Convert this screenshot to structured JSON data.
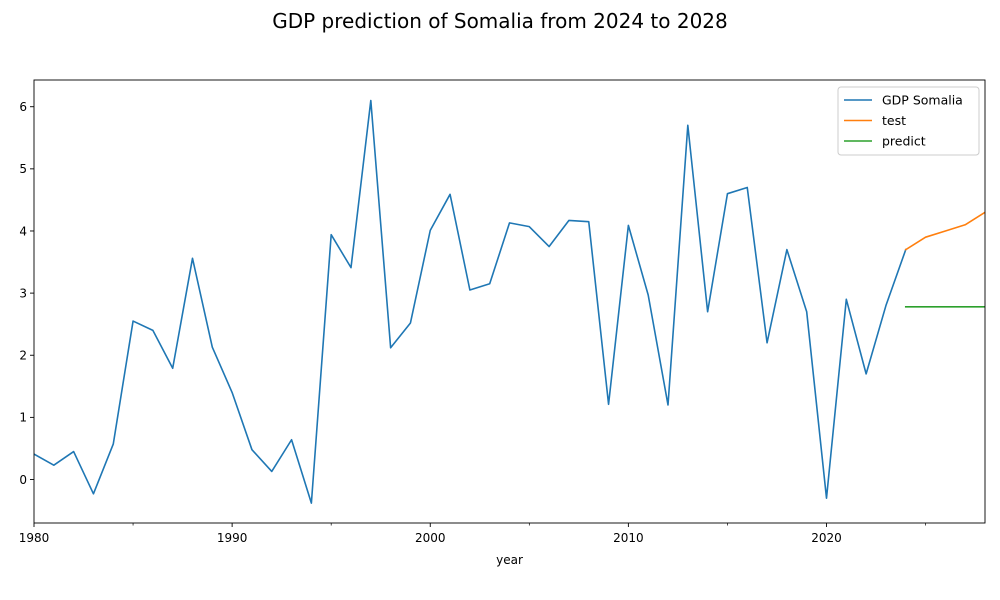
{
  "chart_data": {
    "type": "line",
    "title": "GDP prediction of Somalia from 2024 to 2028",
    "xlabel": "year",
    "ylabel": "",
    "xlim": [
      1980,
      2028
    ],
    "ylim": [
      -0.7,
      6.43
    ],
    "x_ticks": [
      1980,
      1990,
      2000,
      2010,
      2020
    ],
    "x_minor_ticks": [
      1985,
      1995,
      2005,
      2015,
      2025
    ],
    "y_ticks": [
      0,
      1,
      2,
      3,
      4,
      5,
      6
    ],
    "legend_position": "top-right",
    "grid": false,
    "series": [
      {
        "name": "GDP Somalia",
        "color": "#1f77b4",
        "x": [
          1980,
          1981,
          1982,
          1983,
          1984,
          1985,
          1986,
          1987,
          1988,
          1989,
          1990,
          1991,
          1992,
          1993,
          1994,
          1995,
          1996,
          1997,
          1998,
          1999,
          2000,
          2001,
          2002,
          2003,
          2004,
          2005,
          2006,
          2007,
          2008,
          2009,
          2010,
          2011,
          2012,
          2013,
          2014,
          2015,
          2016,
          2017,
          2018,
          2019,
          2020,
          2021,
          2022,
          2023,
          2024
        ],
        "values": [
          0.41,
          0.23,
          0.45,
          -0.23,
          0.57,
          2.55,
          2.4,
          1.79,
          3.56,
          2.13,
          1.4,
          0.48,
          0.13,
          0.64,
          -0.38,
          3.94,
          3.41,
          6.1,
          2.12,
          2.52,
          4.01,
          4.59,
          3.05,
          3.15,
          4.13,
          4.07,
          3.75,
          4.17,
          4.15,
          1.21,
          4.09,
          2.97,
          1.2,
          5.7,
          2.7,
          4.6,
          4.7,
          2.2,
          3.7,
          2.7,
          -0.3,
          2.9,
          1.7,
          2.8,
          3.7
        ]
      },
      {
        "name": "test",
        "color": "#ff7f0e",
        "x": [
          2024,
          2025,
          2026,
          2027,
          2028
        ],
        "values": [
          3.7,
          3.9,
          4.0,
          4.1,
          4.3
        ]
      },
      {
        "name": "predict",
        "color": "#2ca02c",
        "x": [
          2024,
          2025,
          2026,
          2027,
          2028
        ],
        "values": [
          2.78,
          2.78,
          2.78,
          2.78,
          2.78
        ]
      }
    ]
  }
}
